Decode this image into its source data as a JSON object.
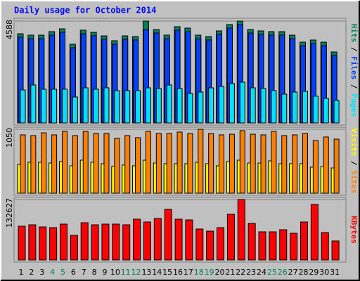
{
  "chart_data": [
    {
      "type": "bar",
      "title": "Daily usage for October 2014",
      "ylim": [
        0,
        4588
      ],
      "yticks": [
        4588
      ],
      "series": [
        {
          "name": "Pages",
          "color": "#00e0ff",
          "values": [
            1487,
            1709,
            1519,
            1519,
            1519,
            1171,
            1582,
            1519,
            1582,
            1455,
            1455,
            1455,
            1582,
            1550,
            1709,
            1550,
            1329,
            1392,
            1582,
            1645,
            1772,
            1835,
            1582,
            1550,
            1455,
            1297,
            1392,
            1424,
            1202,
            1107,
            1012
          ]
        },
        {
          "name": "Files",
          "color": "#0040ff",
          "values": [
            3860,
            3797,
            3797,
            3955,
            4082,
            3385,
            4018,
            3923,
            3765,
            3544,
            3765,
            3734,
            4208,
            4050,
            3797,
            4176,
            4113,
            3797,
            3734,
            3987,
            4271,
            4430,
            4050,
            3987,
            3955,
            3955,
            3797,
            3480,
            3575,
            3480,
            3037
          ]
        },
        {
          "name": "Hits",
          "color": "#00805c",
          "values": [
            4018,
            3955,
            3955,
            4113,
            4240,
            3544,
            4176,
            4082,
            3923,
            3702,
            3923,
            3892,
            4588,
            4208,
            3955,
            4335,
            4271,
            3955,
            3892,
            4145,
            4430,
            4588,
            4208,
            4145,
            4113,
            4113,
            3955,
            3639,
            3734,
            3639,
            3196
          ]
        }
      ]
    },
    {
      "type": "bar",
      "ylim": [
        0,
        1050
      ],
      "yticks": [
        1050
      ],
      "series": [
        {
          "name": "Sites",
          "color": "#ff8000",
          "values": [
            958,
            946,
            992,
            958,
            1015,
            946,
            1015,
            981,
            981,
            900,
            946,
            912,
            1015,
            981,
            981,
            1004,
            981,
            1050,
            981,
            958,
            969,
            1027,
            969,
            958,
            1015,
            946,
            958,
            981,
            865,
            923,
            888
          ]
        },
        {
          "name": "Visits",
          "color": "#ffff00",
          "values": [
            473,
            508,
            508,
            496,
            519,
            450,
            542,
            508,
            485,
            439,
            462,
            450,
            542,
            496,
            485,
            485,
            485,
            508,
            485,
            450,
            519,
            542,
            496,
            496,
            531,
            485,
            485,
            485,
            427,
            439,
            415
          ]
        }
      ]
    },
    {
      "type": "bar",
      "ylim": [
        0,
        132627
      ],
      "yticks": [
        132627
      ],
      "categories": [
        "1",
        "2",
        "3",
        "4",
        "5",
        "6",
        "7",
        "8",
        "9",
        "10",
        "11",
        "12",
        "13",
        "14",
        "15",
        "16",
        "17",
        "18",
        "19",
        "20",
        "21",
        "22",
        "23",
        "24",
        "25",
        "26",
        "27",
        "28",
        "29",
        "30",
        "31"
      ],
      "highlight_categories": [
        "4",
        "5",
        "11",
        "12",
        "18",
        "19",
        "25",
        "26"
      ],
      "highlight_color": "#00805c",
      "series": [
        {
          "name": "KBytes",
          "color": "#ff0000",
          "values": [
            74016,
            77100,
            72474,
            70932,
            78642,
            53970,
            81726,
            77100,
            78642,
            78642,
            77100,
            89436,
            83268,
            90978,
            111024,
            89436,
            87894,
            67848,
            63222,
            70932,
            100230,
            132627,
            80184,
            61680,
            61680,
            66306,
            58596,
            83268,
            121818,
            60138,
            41634
          ]
        }
      ]
    }
  ]
}
